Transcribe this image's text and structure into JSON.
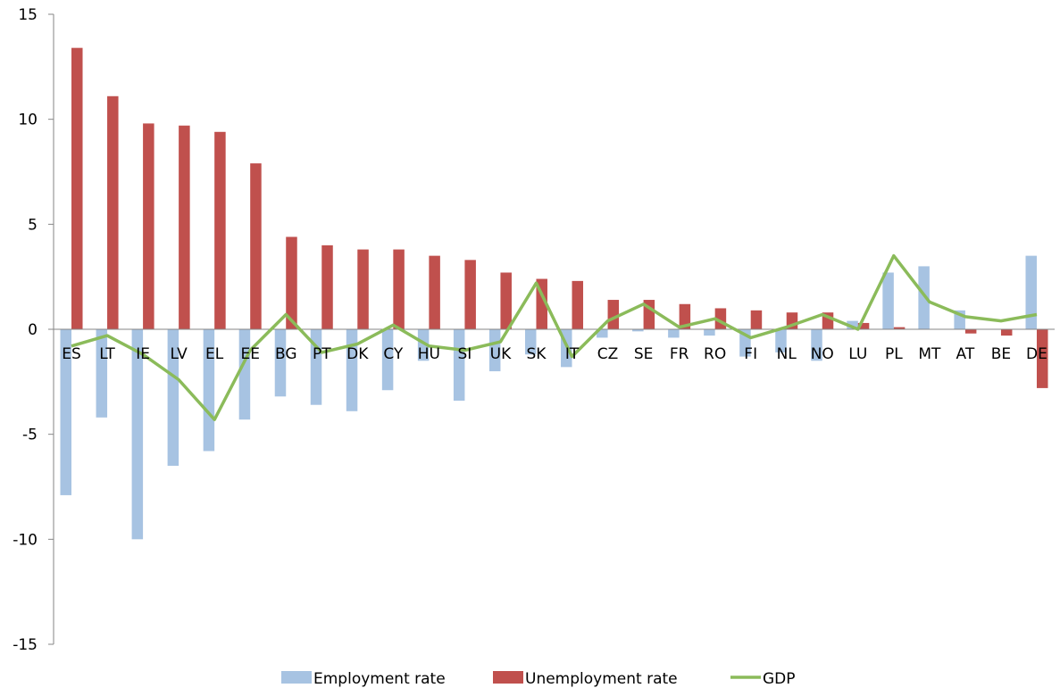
{
  "chart_data": {
    "type": "bar",
    "title": "",
    "xlabel": "",
    "ylabel": "",
    "ylim": [
      -15,
      15
    ],
    "yticks": [
      -15,
      -10,
      -5,
      0,
      5,
      10,
      15
    ],
    "grid": false,
    "legend_position": "bottom",
    "categories": [
      "ES",
      "LT",
      "IE",
      "LV",
      "EL",
      "EE",
      "BG",
      "PT",
      "DK",
      "CY",
      "HU",
      "SI",
      "UK",
      "SK",
      "IT",
      "CZ",
      "SE",
      "FR",
      "RO",
      "FI",
      "NL",
      "NO",
      "LU",
      "PL",
      "MT",
      "AT",
      "BE",
      "DE"
    ],
    "series": [
      {
        "name": "Employment rate",
        "type": "bar",
        "color": "#a7c3e2",
        "values": [
          -7.9,
          -4.2,
          -10.0,
          -6.5,
          -5.8,
          -4.3,
          -3.2,
          -3.6,
          -3.9,
          -2.9,
          -1.5,
          -3.4,
          -2.0,
          -1.2,
          -1.8,
          -0.4,
          -0.1,
          -0.4,
          -0.3,
          -1.3,
          -1.1,
          -1.5,
          0.4,
          2.7,
          3.0,
          0.9,
          0.0,
          3.5
        ]
      },
      {
        "name": "Unemployment rate",
        "type": "bar",
        "color": "#c0504d",
        "values": [
          13.4,
          11.1,
          9.8,
          9.7,
          9.4,
          7.9,
          4.4,
          4.0,
          3.8,
          3.8,
          3.5,
          3.3,
          2.7,
          2.4,
          2.3,
          1.4,
          1.4,
          1.2,
          1.0,
          0.9,
          0.8,
          0.8,
          0.3,
          0.1,
          0.0,
          -0.2,
          -0.3,
          -2.8
        ]
      },
      {
        "name": "GDP",
        "type": "line",
        "color": "#8bbb5a",
        "values": [
          -0.8,
          -0.3,
          -1.2,
          -2.4,
          -4.3,
          -1.0,
          0.7,
          -1.1,
          -0.7,
          0.2,
          -0.8,
          -1.0,
          -0.6,
          2.2,
          -1.3,
          0.4,
          1.2,
          0.1,
          0.5,
          -0.4,
          0.1,
          0.7,
          0.0,
          3.5,
          1.3,
          0.6,
          0.4,
          0.7
        ]
      }
    ]
  }
}
